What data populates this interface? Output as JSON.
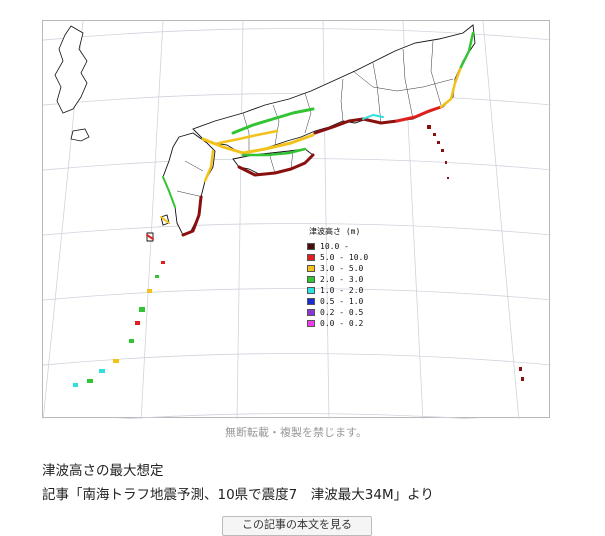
{
  "legend": {
    "title": "津波高さ (m)",
    "items": [
      {
        "label": "10.0 -",
        "color": "#4a0d0d"
      },
      {
        "label": "5.0 - 10.0",
        "color": "#e0201e"
      },
      {
        "label": "3.0 - 5.0",
        "color": "#f2c21a"
      },
      {
        "label": "2.0 - 3.0",
        "color": "#33c433"
      },
      {
        "label": "1.0 - 2.0",
        "color": "#2fe0e0"
      },
      {
        "label": "0.5 - 1.0",
        "color": "#1a2bd0"
      },
      {
        "label": "0.2 - 0.5",
        "color": "#8e34d8"
      },
      {
        "label": "0.0 - 0.2",
        "color": "#f03cf0"
      }
    ]
  },
  "copyright": "無断転載・複製を禁じます。",
  "caption": {
    "title": "津波高さの最大想定",
    "source": "記事「南海トラフ地震予測、10県で震度7　津波最大34M」より"
  },
  "button": {
    "label": "この記事の本文を見る"
  }
}
